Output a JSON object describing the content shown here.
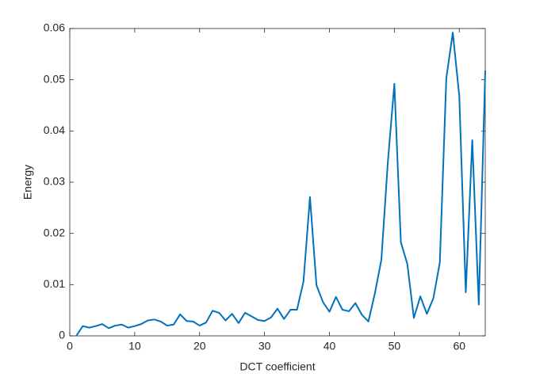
{
  "chart_data": {
    "type": "line",
    "x_label": "DCT coefficient",
    "y_label": "Energy",
    "x": [
      1,
      2,
      3,
      4,
      5,
      6,
      7,
      8,
      9,
      10,
      11,
      12,
      13,
      14,
      15,
      16,
      17,
      18,
      19,
      20,
      21,
      22,
      23,
      24,
      25,
      26,
      27,
      28,
      29,
      30,
      31,
      32,
      33,
      34,
      35,
      36,
      37,
      38,
      39,
      40,
      41,
      42,
      43,
      44,
      45,
      46,
      47,
      48,
      49,
      50,
      51,
      52,
      53,
      54,
      55,
      56,
      57,
      58,
      59,
      60,
      61,
      62,
      63,
      64
    ],
    "series": [
      {
        "color": "#0072BD",
        "values": [
          0,
          0.0019,
          0.0016,
          0.0019,
          0.0023,
          0.0015,
          0.002,
          0.0022,
          0.0016,
          0.0019,
          0.0023,
          0.003,
          0.0032,
          0.0028,
          0.002,
          0.0022,
          0.0042,
          0.0029,
          0.0028,
          0.002,
          0.0026,
          0.0049,
          0.0045,
          0.003,
          0.0043,
          0.0025,
          0.0045,
          0.0038,
          0.0031,
          0.0029,
          0.0036,
          0.0053,
          0.0033,
          0.0051,
          0.0051,
          0.0106,
          0.0271,
          0.0099,
          0.0066,
          0.0047,
          0.0076,
          0.0051,
          0.0048,
          0.0064,
          0.0041,
          0.0028,
          0.0083,
          0.0149,
          0.034,
          0.0492,
          0.0183,
          0.014,
          0.0035,
          0.0077,
          0.0043,
          0.0073,
          0.0143,
          0.0503,
          0.0592,
          0.0468,
          0.0085,
          0.0382,
          0.0061,
          0.0518
        ]
      }
    ],
    "xlim": [
      0,
      64
    ],
    "xticks": [
      0,
      10,
      20,
      30,
      40,
      50,
      60
    ],
    "ylim": [
      0,
      0.06
    ],
    "yticks": [
      0,
      0.01,
      0.02,
      0.03,
      0.04,
      0.05,
      0.06
    ],
    "grid": false
  }
}
